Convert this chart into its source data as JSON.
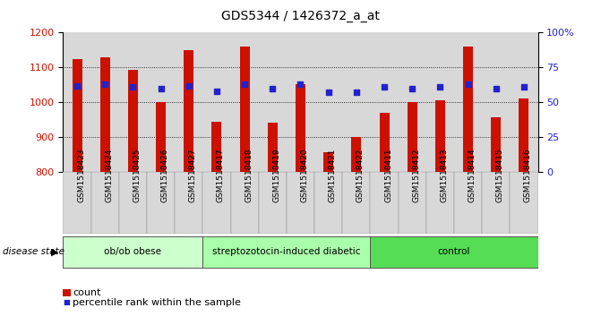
{
  "title": "GDS5344 / 1426372_a_at",
  "samples": [
    "GSM1518423",
    "GSM1518424",
    "GSM1518425",
    "GSM1518426",
    "GSM1518427",
    "GSM1518417",
    "GSM1518418",
    "GSM1518419",
    "GSM1518420",
    "GSM1518421",
    "GSM1518422",
    "GSM1518411",
    "GSM1518412",
    "GSM1518413",
    "GSM1518414",
    "GSM1518415",
    "GSM1518416"
  ],
  "counts": [
    1125,
    1130,
    1093,
    1000,
    1150,
    945,
    1160,
    942,
    1052,
    858,
    902,
    970,
    1000,
    1005,
    1160,
    958,
    1010
  ],
  "pct_ranks_pct": [
    62,
    63,
    61,
    60,
    62,
    58,
    63,
    60,
    63,
    57,
    57,
    61,
    60,
    61,
    63,
    60,
    61
  ],
  "groups": [
    {
      "label": "ob/ob obese",
      "start": 0,
      "end": 5,
      "color": "#ccffcc"
    },
    {
      "label": "streptozotocin-induced diabetic",
      "start": 5,
      "end": 11,
      "color": "#aaffaa"
    },
    {
      "label": "control",
      "start": 11,
      "end": 17,
      "color": "#55dd55"
    }
  ],
  "ylim_left": [
    800,
    1200
  ],
  "yticks_left": [
    800,
    900,
    1000,
    1100,
    1200
  ],
  "ylim_right": [
    0,
    100
  ],
  "yticks_right": [
    0,
    25,
    50,
    75,
    100
  ],
  "bar_color": "#cc1100",
  "dot_color": "#2222cc",
  "bar_width": 0.35,
  "col_bg_color": "#d8d8d8",
  "plot_bg": "#ffffff",
  "ylabel_left_color": "#cc1100",
  "ylabel_right_color": "#2222cc",
  "legend_count_label": "count",
  "legend_pct_label": "percentile rank within the sample",
  "disease_state_label": "disease state",
  "grid_color": "#000000",
  "grid_lw": 0.6,
  "title_fontsize": 10,
  "tick_fontsize": 8,
  "sample_fontsize": 6.5
}
